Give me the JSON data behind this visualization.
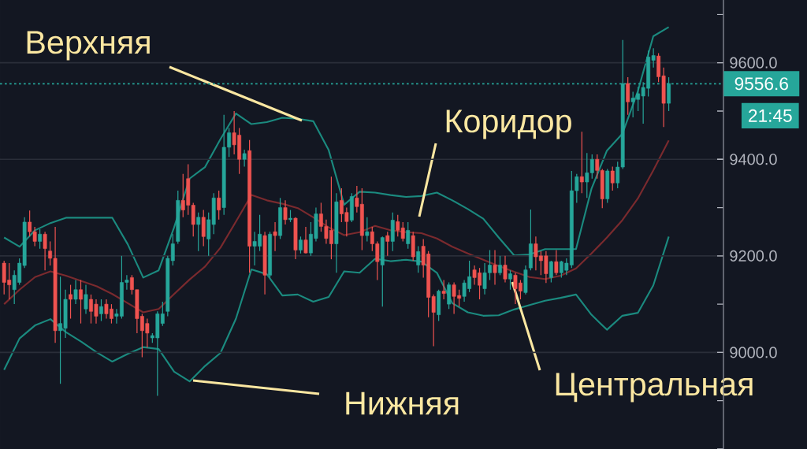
{
  "chart_data": [
    {
      "type": "candlestick",
      "categories": [
        null,
        null,
        null,
        null,
        null,
        null,
        null,
        null,
        null,
        null,
        null,
        null,
        null,
        null,
        null,
        null,
        null,
        null,
        null,
        null,
        null,
        null,
        null,
        null,
        null,
        null,
        null,
        null,
        null,
        null,
        null,
        null,
        null,
        null,
        null,
        null,
        null,
        null,
        null,
        null,
        null,
        null,
        null,
        null,
        null,
        null,
        null,
        null,
        null,
        null,
        null,
        null,
        null,
        null,
        null,
        null,
        null,
        null,
        null,
        null,
        null,
        null,
        null,
        null,
        null,
        null,
        null,
        null,
        null,
        null,
        null,
        null,
        null,
        null,
        null,
        null,
        null,
        null,
        null,
        null,
        null,
        null,
        null,
        null,
        null,
        null,
        null,
        null,
        null,
        null,
        null,
        null,
        null,
        null,
        null,
        null,
        null,
        null,
        null,
        null,
        null,
        null,
        null,
        null,
        null,
        null,
        null,
        null,
        null,
        null,
        null,
        null,
        null,
        null,
        null,
        null,
        null,
        null,
        null,
        null,
        null,
        null,
        null,
        null,
        null,
        null,
        null,
        null,
        null,
        null,
        null
      ],
      "ohlc": [
        [
          9185,
          9190,
          9120,
          9145
        ],
        [
          9150,
          9185,
          9110,
          9140
        ],
        [
          9130,
          9170,
          9100,
          9160
        ],
        [
          9145,
          9195,
          9140,
          9185
        ],
        [
          9180,
          9280,
          9175,
          9270
        ],
        [
          9270,
          9294,
          9240,
          9250
        ],
        [
          9250,
          9260,
          9220,
          9230
        ],
        [
          9230,
          9255,
          9215,
          9245
        ],
        [
          9245,
          9250,
          9170,
          9215
        ],
        [
          9210,
          9230,
          9180,
          9195
        ],
        [
          9195,
          9260,
          9020,
          9045
        ],
        [
          9045,
          9157,
          8935,
          9060
        ],
        [
          9050,
          9130,
          9030,
          9110
        ],
        [
          9120,
          9140,
          9070,
          9110
        ],
        [
          9110,
          9150,
          9100,
          9130
        ],
        [
          9130,
          9150,
          9060,
          9110
        ],
        [
          9090,
          9140,
          9080,
          9120
        ],
        [
          9110,
          9120,
          9060,
          9085
        ],
        [
          9100,
          9110,
          9060,
          9075
        ],
        [
          9080,
          9110,
          9065,
          9095
        ],
        [
          9100,
          9110,
          9070,
          9080
        ],
        [
          9090,
          9100,
          9060,
          9070
        ],
        [
          9075,
          9090,
          9060,
          9080
        ],
        [
          9075,
          9200,
          9070,
          9145
        ],
        [
          9145,
          9160,
          9130,
          9150
        ],
        [
          9155,
          9160,
          9120,
          9130
        ],
        [
          9130,
          9130,
          9040,
          9070
        ],
        [
          9075,
          9080,
          8990,
          9045
        ],
        [
          9060,
          9070,
          9010,
          9040
        ],
        [
          9030,
          9040,
          9020,
          9035
        ],
        [
          9030,
          9085,
          8910,
          9080
        ],
        [
          9060,
          9105,
          9055,
          9080
        ],
        [
          9085,
          9200,
          9075,
          9195
        ],
        [
          9190,
          9245,
          9180,
          9225
        ],
        [
          9230,
          9335,
          9225,
          9315
        ],
        [
          9315,
          9370,
          9280,
          9295
        ],
        [
          9360,
          9390,
          9285,
          9305
        ],
        [
          9305,
          9310,
          9240,
          9265
        ],
        [
          9265,
          9290,
          9210,
          9280
        ],
        [
          9280,
          9295,
          9220,
          9240
        ],
        [
          9235,
          9290,
          9200,
          9275
        ],
        [
          9265,
          9330,
          9245,
          9320
        ],
        [
          9320,
          9335,
          9275,
          9295
        ],
        [
          9300,
          9492,
          9285,
          9425
        ],
        [
          9425,
          9465,
          9405,
          9455
        ],
        [
          9455,
          9500,
          9410,
          9430
        ],
        [
          9450,
          9465,
          9370,
          9400
        ],
        [
          9400,
          9420,
          9385,
          9412
        ],
        [
          9418,
          9440,
          9165,
          9220
        ],
        [
          9220,
          9250,
          9180,
          9230
        ],
        [
          9220,
          9285,
          9210,
          9245
        ],
        [
          9242,
          9250,
          9120,
          9160
        ],
        [
          9160,
          9250,
          9155,
          9245
        ],
        [
          9250,
          9270,
          9210,
          9242
        ],
        [
          9242,
          9320,
          9235,
          9300
        ],
        [
          9300,
          9315,
          9265,
          9275
        ],
        [
          9275,
          9295,
          9270,
          9278
        ],
        [
          9278,
          9280,
          9193,
          9212
        ],
        [
          9212,
          9240,
          9205,
          9233
        ],
        [
          9233,
          9260,
          9205,
          9206
        ],
        [
          9206,
          9270,
          9200,
          9245
        ],
        [
          9236,
          9300,
          9230,
          9287
        ],
        [
          9287,
          9310,
          9250,
          9261
        ],
        [
          9261,
          9275,
          9225,
          9236
        ],
        [
          9253,
          9364,
          9193,
          9225
        ],
        [
          9225,
          9330,
          9165,
          9312
        ],
        [
          9315,
          9340,
          9270,
          9287
        ],
        [
          9290,
          9300,
          9240,
          9271
        ],
        [
          9274,
          9330,
          9270,
          9323
        ],
        [
          9320,
          9345,
          9290,
          9302
        ],
        [
          9307,
          9340,
          9212,
          9242
        ],
        [
          9242,
          9280,
          9230,
          9250
        ],
        [
          9250,
          9260,
          9210,
          9225
        ],
        [
          9225,
          9230,
          9150,
          9188
        ],
        [
          9181,
          9240,
          9095,
          9238
        ],
        [
          9242,
          9250,
          9200,
          9230
        ],
        [
          9230,
          9290,
          9210,
          9274
        ],
        [
          9271,
          9285,
          9240,
          9253
        ],
        [
          9258,
          9270,
          9230,
          9236
        ],
        [
          9225,
          9270,
          9215,
          9253
        ],
        [
          9242,
          9250,
          9190,
          9198
        ],
        [
          9181,
          9220,
          9165,
          9209
        ],
        [
          9220,
          9235,
          9155,
          9181
        ],
        [
          9204,
          9210,
          9073,
          9114
        ],
        [
          9116,
          9120,
          9013,
          9083
        ],
        [
          9078,
          9130,
          9065,
          9127
        ],
        [
          9127,
          9150,
          9110,
          9122
        ],
        [
          9100,
          9145,
          9090,
          9140
        ],
        [
          9140,
          9145,
          9080,
          9116
        ],
        [
          9118,
          9130,
          9095,
          9112
        ],
        [
          9116,
          9150,
          9105,
          9144
        ],
        [
          9132,
          9190,
          9125,
          9157
        ],
        [
          9171,
          9180,
          9140,
          9155
        ],
        [
          9165,
          9175,
          9110,
          9139
        ],
        [
          9132,
          9185,
          9120,
          9165
        ],
        [
          9165,
          9212,
          9150,
          9181
        ],
        [
          9181,
          9212,
          9140,
          9165
        ],
        [
          9165,
          9200,
          9160,
          9181
        ],
        [
          9181,
          9200,
          9145,
          9152
        ],
        [
          9152,
          9170,
          9130,
          9163
        ],
        [
          9160,
          9165,
          9100,
          9132
        ],
        [
          9144,
          9150,
          9110,
          9127
        ],
        [
          9124,
          9180,
          9120,
          9171
        ],
        [
          9175,
          9296,
          9170,
          9225
        ],
        [
          9225,
          9240,
          9170,
          9198
        ],
        [
          9200,
          9210,
          9160,
          9190
        ],
        [
          9200,
          9210,
          9144,
          9163
        ],
        [
          9155,
          9190,
          9145,
          9188
        ],
        [
          9188,
          9212,
          9160,
          9165
        ],
        [
          9165,
          9190,
          9155,
          9188
        ],
        [
          9170,
          9195,
          9160,
          9185
        ],
        [
          9181,
          9376,
          9175,
          9335
        ],
        [
          9335,
          9370,
          9310,
          9364
        ],
        [
          9364,
          9457,
          9330,
          9353
        ],
        [
          9353,
          9413,
          9320,
          9372
        ],
        [
          9372,
          9410,
          9360,
          9400
        ],
        [
          9400,
          9410,
          9360,
          9377
        ],
        [
          9377,
          9380,
          9299,
          9318
        ],
        [
          9318,
          9380,
          9310,
          9376
        ],
        [
          9376,
          9385,
          9335,
          9351
        ],
        [
          9351,
          9395,
          9340,
          9384
        ],
        [
          9384,
          9647,
          9380,
          9557
        ],
        [
          9557,
          9570,
          9492,
          9519
        ],
        [
          9519,
          9540,
          9487,
          9527
        ],
        [
          9524,
          9550,
          9500,
          9536
        ],
        [
          9531,
          9560,
          9474,
          9549
        ],
        [
          9547,
          9625,
          9530,
          9612
        ],
        [
          9605,
          9630,
          9590,
          9615
        ],
        [
          9614,
          9620,
          9560,
          9571
        ],
        [
          9573,
          9590,
          9467,
          9516
        ],
        [
          9516,
          9570,
          9500,
          9557
        ]
      ],
      "colors": [
        "#ef5350",
        "#ef5350",
        "#26a69a",
        "#26a69a",
        "#26a69a",
        "#ef5350",
        "#ef5350",
        "#26a69a",
        "#ef5350",
        "#ef5350",
        "#ef5350",
        "#26a69a",
        "#26a69a",
        "#ef5350",
        "#26a69a",
        "#ef5350",
        "#26a69a",
        "#ef5350",
        "#ef5350",
        "#26a69a",
        "#ef5350",
        "#ef5350",
        "#26a69a",
        "#26a69a",
        "#26a69a",
        "#ef5350",
        "#ef5350",
        "#ef5350",
        "#ef5350",
        "#26a69a",
        "#26a69a",
        "#26a69a",
        "#26a69a",
        "#26a69a",
        "#26a69a",
        "#ef5350",
        "#ef5350",
        "#ef5350",
        "#26a69a",
        "#ef5350",
        "#26a69a",
        "#26a69a",
        "#ef5350",
        "#26a69a",
        "#26a69a",
        "#ef5350",
        "#ef5350",
        "#26a69a",
        "#ef5350",
        "#26a69a",
        "#26a69a",
        "#ef5350",
        "#26a69a",
        "#ef5350",
        "#26a69a",
        "#ef5350",
        "#26a69a",
        "#ef5350",
        "#26a69a",
        "#ef5350",
        "#26a69a",
        "#26a69a",
        "#ef5350",
        "#ef5350",
        "#ef5350",
        "#26a69a",
        "#ef5350",
        "#ef5350",
        "#26a69a",
        "#ef5350",
        "#ef5350",
        "#26a69a",
        "#ef5350",
        "#ef5350",
        "#26a69a",
        "#ef5350",
        "#26a69a",
        "#ef5350",
        "#ef5350",
        "#26a69a",
        "#ef5350",
        "#26a69a",
        "#ef5350",
        "#ef5350",
        "#ef5350",
        "#26a69a",
        "#ef5350",
        "#26a69a",
        "#ef5350",
        "#ef5350",
        "#26a69a",
        "#26a69a",
        "#ef5350",
        "#ef5350",
        "#26a69a",
        "#26a69a",
        "#ef5350",
        "#26a69a",
        "#ef5350",
        "#26a69a",
        "#ef5350",
        "#ef5350",
        "#26a69a",
        "#26a69a",
        "#ef5350",
        "#ef5350",
        "#ef5350",
        "#26a69a",
        "#ef5350",
        "#26a69a",
        "#26a69a",
        "#26a69a",
        "#26a69a",
        "#ef5350",
        "#26a69a",
        "#26a69a",
        "#ef5350",
        "#ef5350",
        "#26a69a",
        "#ef5350",
        "#26a69a",
        "#26a69a",
        "#ef5350",
        "#26a69a",
        "#26a69a",
        "#26a69a",
        "#26a69a",
        "#26a69a",
        "#ef5350",
        "#ef5350",
        "#26a69a"
      ],
      "ylim": [
        8800,
        9730
      ],
      "yticks": [
        {
          "value": 9000,
          "label": "9000.0"
        },
        {
          "value": 9200,
          "label": "9200.0"
        },
        {
          "value": 9400,
          "label": "9400.0"
        },
        {
          "value": 9600,
          "label": "9600.0"
        }
      ],
      "grid": "y",
      "ref_lines": [
        {
          "axis": "y",
          "value": 9556.6,
          "label": "9556.6",
          "color": "#26a69a",
          "line_style": "dotted"
        }
      ],
      "annotations": [
        "21:45"
      ]
    },
    {
      "type": "line",
      "categories": [
        null,
        null,
        null,
        null,
        null,
        null,
        null,
        null,
        null,
        null,
        null,
        null,
        null,
        null,
        null,
        null,
        null,
        null,
        null,
        null,
        null,
        null,
        null,
        null,
        null,
        null,
        null,
        null,
        null,
        null,
        null,
        null,
        null,
        null,
        null,
        null,
        null,
        null,
        null,
        null,
        null,
        null,
        null,
        null
      ],
      "series": [
        {
          "color": "#1b8a7f",
          "values": [
            9238,
            9219,
            9253,
            9268,
            9279,
            9279,
            9279,
            9279,
            9224,
            9155,
            9170,
            9259,
            9360,
            9384,
            9442,
            9495,
            9473,
            9477,
            9486,
            9484,
            9479,
            9419,
            9306,
            9333,
            9331,
            9326,
            9322,
            9324,
            9331,
            9315,
            9297,
            9277,
            9238,
            9201,
            9203,
            9214,
            9214,
            9214,
            9339,
            9418,
            9453,
            9541,
            9655,
            9674
          ]
        },
        {
          "color": "#7a2a2e",
          "values": [
            9100,
            9130,
            9156,
            9168,
            9159,
            9148,
            9137,
            9121,
            9102,
            9083,
            9090,
            9121,
            9151,
            9178,
            9217,
            9271,
            9326,
            9315,
            9308,
            9299,
            9280,
            9259,
            9243,
            9249,
            9262,
            9253,
            9249,
            9247,
            9236,
            9219,
            9205,
            9192,
            9179,
            9167,
            9156,
            9152,
            9159,
            9174,
            9205,
            9238,
            9274,
            9319,
            9377,
            9439
          ]
        },
        {
          "color": "#1b8a7f",
          "values": [
            8964,
            9029,
            9056,
            9069,
            9042,
            9022,
            9000,
            8981,
            8997,
            9011,
            9007,
            8960,
            8940,
            8972,
            8999,
            9070,
            9172,
            9162,
            9118,
            9120,
            9105,
            9115,
            9168,
            9165,
            9194,
            9189,
            9192,
            9188,
            9165,
            9102,
            9083,
            9076,
            9077,
            9089,
            9098,
            9107,
            9113,
            9120,
            9078,
            9047,
            9076,
            9082,
            9139,
            9240
          ]
        }
      ],
      "ylim": [
        8800,
        9730
      ],
      "annotations": [
        "Верхняя",
        "Коридор",
        "Нижняя",
        "Центральная"
      ]
    }
  ]
}
